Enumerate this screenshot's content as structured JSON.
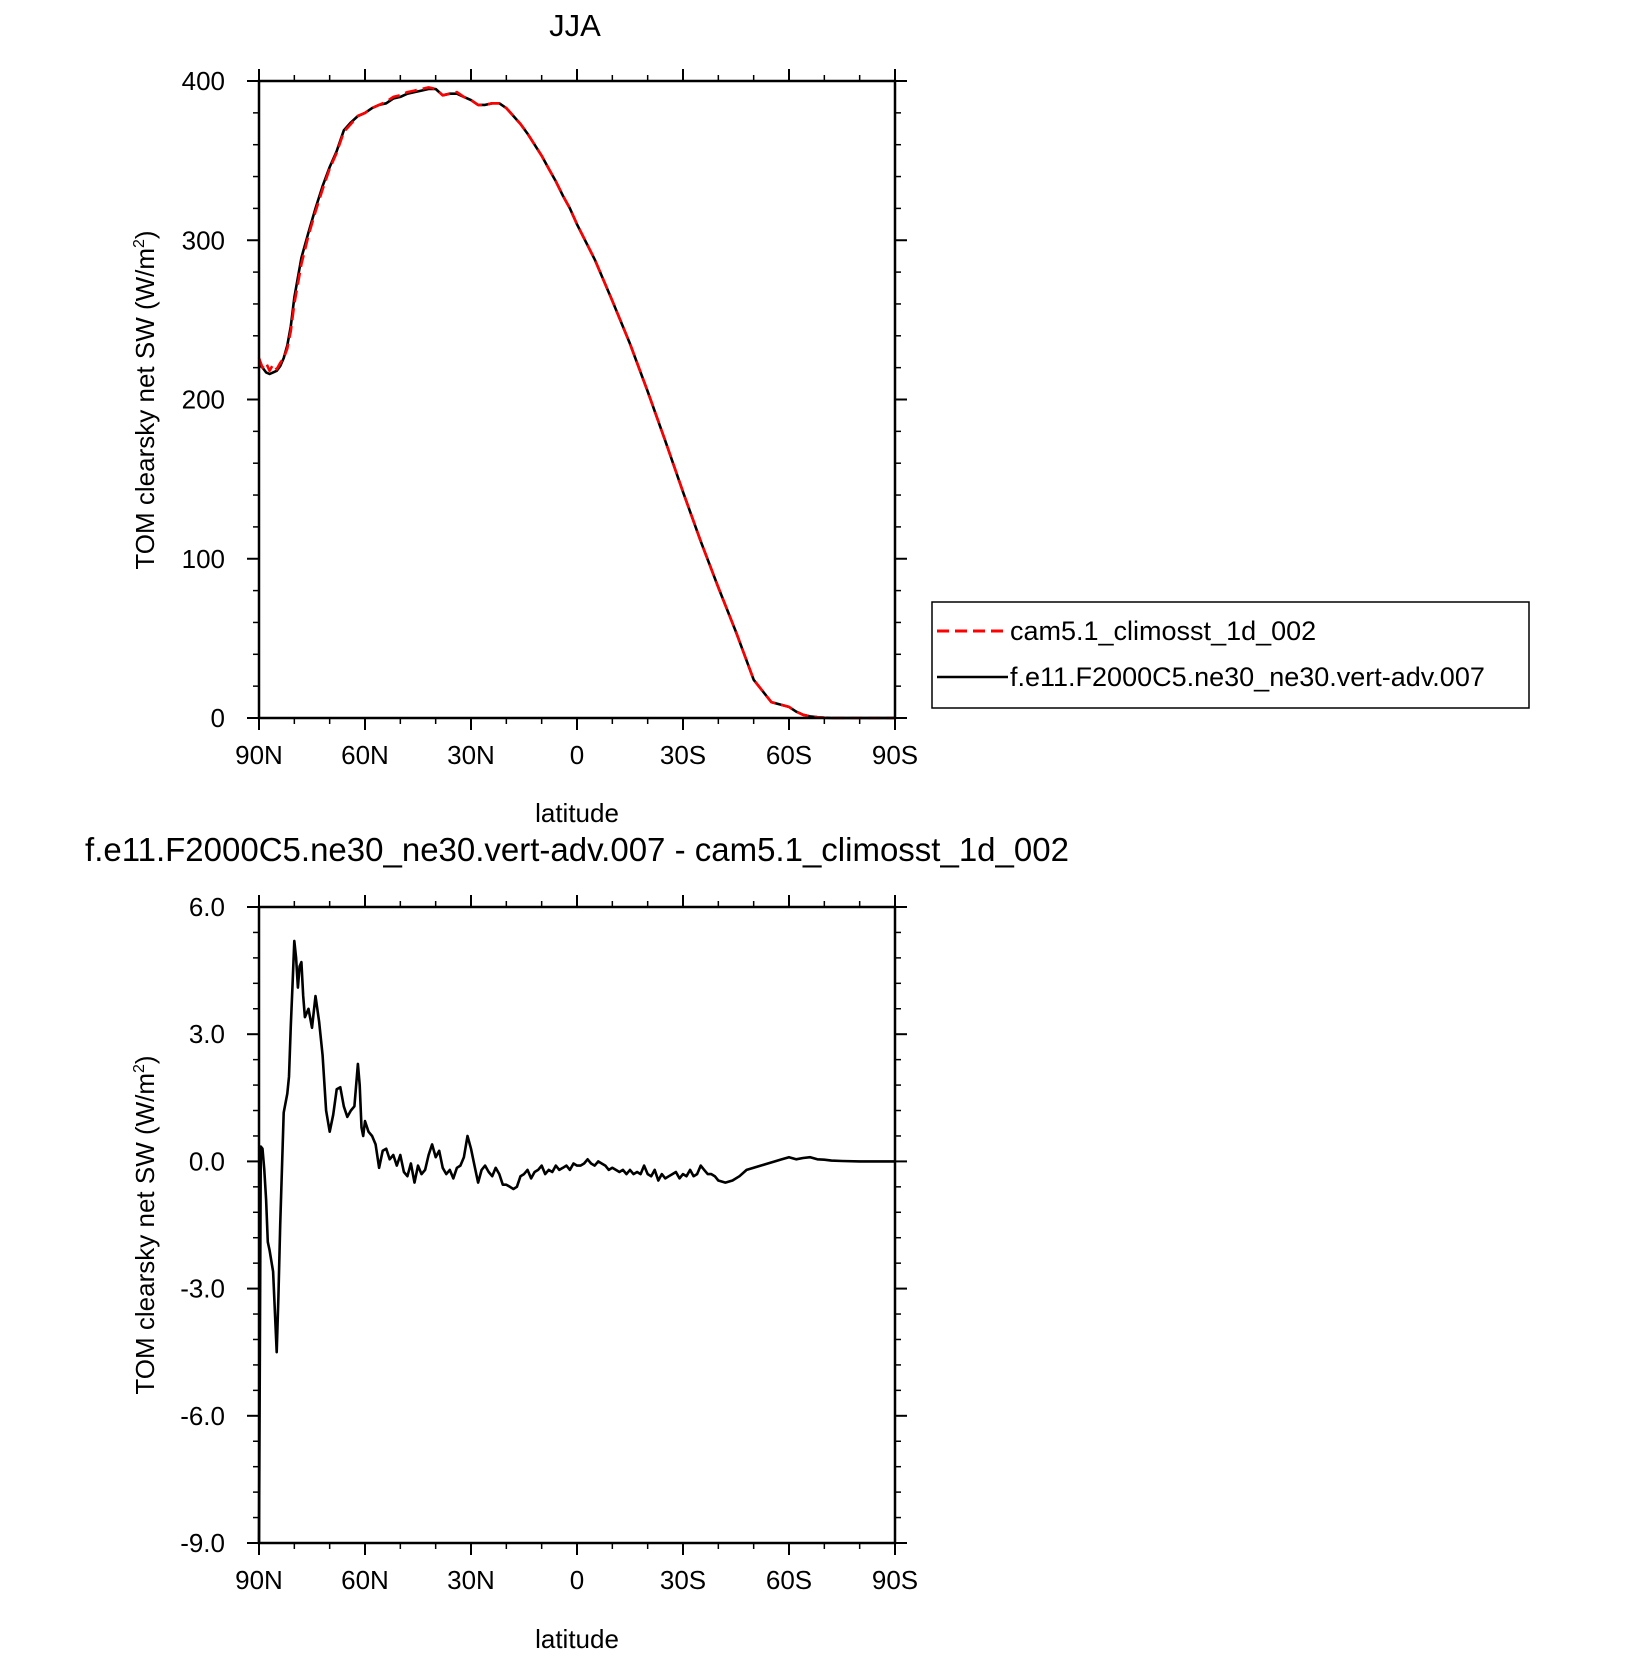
{
  "chart_data": [
    {
      "type": "line",
      "title": "JJA",
      "xlabel": "latitude",
      "ylabel": "TOM clearsky net SW (W/m",
      "ylabel_sup": "2",
      "ylabel_close": ")",
      "xlim": [
        90,
        -90
      ],
      "ylim": [
        0,
        400
      ],
      "x_tick_values": [
        90,
        60,
        30,
        0,
        -30,
        -60,
        -90
      ],
      "x_tick_labels": [
        "90N",
        "60N",
        "30N",
        "0",
        "30S",
        "60S",
        "90S"
      ],
      "y_tick_values": [
        0,
        100,
        200,
        300,
        400
      ],
      "y_tick_labels": [
        "0",
        "100",
        "200",
        "300",
        "400"
      ],
      "legend": "right",
      "series": [
        {
          "name": "cam5.1_climosst_1d_002",
          "color": "#ff0000",
          "dash": "dashed",
          "x": [
            90,
            89,
            88,
            87,
            86,
            85,
            84,
            83,
            82,
            81,
            80,
            78,
            76,
            74,
            72,
            70,
            68,
            66,
            64,
            62,
            60,
            58,
            56,
            54,
            52,
            50,
            48,
            46,
            44,
            42,
            40,
            38,
            36,
            34,
            32,
            30,
            28,
            26,
            24,
            22,
            20,
            18,
            16,
            14,
            12,
            10,
            8,
            6,
            4,
            2,
            0,
            -5,
            -10,
            -15,
            -20,
            -25,
            -30,
            -35,
            -40,
            -45,
            -50,
            -55,
            -60,
            -62,
            -64,
            -66,
            -68,
            -70,
            -72,
            -74,
            -76,
            -78,
            -80,
            -85,
            -90
          ],
          "y": [
            226,
            220,
            223,
            218,
            222,
            219,
            223,
            226,
            232,
            243,
            260,
            285,
            303,
            318,
            332,
            345,
            355,
            368,
            373,
            378,
            380,
            383,
            385,
            387,
            390,
            391,
            393,
            394,
            395,
            396,
            395,
            391,
            392,
            393,
            390,
            388,
            385,
            385,
            386,
            386,
            383,
            378,
            373,
            367,
            360,
            353,
            345,
            337,
            328,
            320,
            310,
            288,
            262,
            235,
            205,
            174,
            142,
            111,
            82,
            54,
            24,
            10,
            7,
            4,
            2,
            1,
            0.5,
            0.2,
            0,
            0,
            0,
            0,
            0,
            0,
            0
          ]
        },
        {
          "name": "f.e11.F2000C5.ne30_ne30.vert-adv.007",
          "color": "#000000",
          "dash": "solid",
          "x": [
            90,
            89,
            88,
            87,
            86,
            85,
            84,
            83,
            82,
            81,
            80,
            78,
            76,
            74,
            72,
            70,
            68,
            66,
            64,
            62,
            60,
            58,
            56,
            54,
            52,
            50,
            48,
            46,
            44,
            42,
            40,
            38,
            36,
            34,
            32,
            30,
            28,
            26,
            24,
            22,
            20,
            18,
            16,
            14,
            12,
            10,
            8,
            6,
            4,
            2,
            0,
            -5,
            -10,
            -15,
            -20,
            -25,
            -30,
            -35,
            -40,
            -45,
            -50,
            -55,
            -60,
            -62,
            -64,
            -66,
            -68,
            -70,
            -72,
            -74,
            -76,
            -78,
            -80,
            -85,
            -90
          ],
          "y": [
            222,
            220,
            217,
            216,
            217,
            218,
            221,
            226,
            234,
            246,
            264,
            289,
            305,
            320,
            334,
            346,
            356,
            369,
            374,
            378,
            380,
            383,
            385,
            386,
            389,
            390,
            392,
            393,
            394,
            395,
            395,
            391,
            392,
            392,
            390,
            388,
            385,
            385,
            386,
            386,
            383,
            378,
            373,
            367,
            360,
            353,
            345,
            337,
            328,
            320,
            310,
            288,
            262,
            235,
            205,
            174,
            142,
            111,
            82,
            54,
            24,
            10,
            7,
            4,
            2,
            1,
            0.5,
            0.2,
            0,
            0,
            0,
            0,
            0,
            0,
            0
          ]
        }
      ]
    },
    {
      "type": "line",
      "title": "f.e11.F2000C5.ne30_ne30.vert-adv.007 - cam5.1_climosst_1d_002",
      "xlabel": "latitude",
      "ylabel": "TOM clearsky net SW (W/m",
      "ylabel_sup": "2",
      "ylabel_close": ")",
      "xlim": [
        90,
        -90
      ],
      "ylim": [
        -9,
        6
      ],
      "x_tick_values": [
        90,
        60,
        30,
        0,
        -30,
        -60,
        -90
      ],
      "x_tick_labels": [
        "90N",
        "60N",
        "30N",
        "0",
        "30S",
        "60S",
        "90S"
      ],
      "y_tick_values": [
        -9,
        -6,
        -3,
        0,
        3,
        6
      ],
      "y_tick_labels": [
        "-9.0",
        "-6.0",
        "-3.0",
        "0.0",
        "3.0",
        "6.0"
      ],
      "series": [
        {
          "color": "#000000",
          "x": [
            90,
            89.5,
            89,
            88.5,
            88,
            87.5,
            87,
            86,
            85,
            84.5,
            84,
            83,
            82,
            81.5,
            81,
            80.5,
            80,
            79.5,
            79,
            78.5,
            78,
            77.5,
            77,
            76,
            75,
            74,
            73,
            72,
            71,
            70,
            69,
            68,
            67,
            66,
            65,
            64,
            63,
            62,
            61.5,
            61,
            60.5,
            60,
            59,
            58,
            57,
            56,
            55,
            54,
            53,
            52,
            51,
            50,
            49,
            48,
            47,
            46,
            45,
            44,
            43,
            42,
            41,
            40,
            39,
            38,
            37,
            36,
            35,
            34,
            33,
            32,
            31,
            30,
            29,
            28,
            27,
            26,
            25,
            24,
            23,
            22,
            21,
            20,
            19,
            18,
            17,
            16,
            15,
            14,
            13,
            12,
            11,
            10,
            9,
            8,
            7,
            6,
            5,
            4,
            3,
            2,
            1,
            0,
            -1,
            -2,
            -3,
            -4,
            -5,
            -6,
            -7,
            -8,
            -9,
            -10,
            -11,
            -12,
            -13,
            -14,
            -15,
            -16,
            -17,
            -18,
            -19,
            -20,
            -21,
            -22,
            -23,
            -24,
            -25,
            -26,
            -27,
            -28,
            -29,
            -30,
            -31,
            -32,
            -33,
            -34,
            -35,
            -36,
            -37,
            -38,
            -39,
            -40,
            -42,
            -44,
            -46,
            -48,
            -50,
            -52,
            -54,
            -56,
            -58,
            -60,
            -62,
            -64,
            -66,
            -68,
            -70,
            -72,
            -75,
            -80,
            -85,
            -90
          ],
          "y": [
            -9,
            0.35,
            0.3,
            -0.2,
            -0.9,
            -1.9,
            -2.1,
            -2.6,
            -4.5,
            -3.2,
            -1.5,
            1.15,
            1.6,
            2,
            3.2,
            4.2,
            5.2,
            4.8,
            4.1,
            4.6,
            4.7,
            3.9,
            3.4,
            3.6,
            3.15,
            3.9,
            3.3,
            2.5,
            1.2,
            0.7,
            1.1,
            1.7,
            1.75,
            1.3,
            1.05,
            1.2,
            1.3,
            2.3,
            1.8,
            0.8,
            0.6,
            0.95,
            0.7,
            0.6,
            0.4,
            -0.15,
            0.25,
            0.3,
            0.05,
            0.15,
            -0.1,
            0.15,
            -0.25,
            -0.35,
            -0.05,
            -0.5,
            -0.1,
            -0.3,
            -0.2,
            0.15,
            0.4,
            0.1,
            0.25,
            -0.15,
            -0.3,
            -0.2,
            -0.4,
            -0.15,
            -0.1,
            0.1,
            0.6,
            0.3,
            -0.1,
            -0.5,
            -0.2,
            -0.1,
            -0.25,
            -0.35,
            -0.15,
            -0.3,
            -0.55,
            -0.55,
            -0.6,
            -0.65,
            -0.6,
            -0.35,
            -0.3,
            -0.2,
            -0.4,
            -0.25,
            -0.2,
            -0.1,
            -0.3,
            -0.2,
            -0.25,
            -0.1,
            -0.2,
            -0.15,
            -0.1,
            -0.2,
            -0.05,
            -0.1,
            -0.1,
            -0.05,
            0.05,
            -0.05,
            -0.1,
            0.0,
            -0.05,
            -0.1,
            -0.2,
            -0.15,
            -0.2,
            -0.25,
            -0.2,
            -0.3,
            -0.2,
            -0.3,
            -0.25,
            -0.3,
            -0.1,
            -0.3,
            -0.35,
            -0.2,
            -0.45,
            -0.3,
            -0.4,
            -0.35,
            -0.3,
            -0.25,
            -0.4,
            -0.3,
            -0.35,
            -0.2,
            -0.35,
            -0.3,
            -0.1,
            -0.2,
            -0.3,
            -0.3,
            -0.35,
            -0.45,
            -0.5,
            -0.45,
            -0.35,
            -0.2,
            -0.15,
            -0.1,
            -0.05,
            0,
            0.05,
            0.1,
            0.05,
            0.08,
            0.1,
            0.05,
            0.04,
            0.02,
            0.01,
            0,
            0,
            0
          ]
        }
      ]
    }
  ]
}
